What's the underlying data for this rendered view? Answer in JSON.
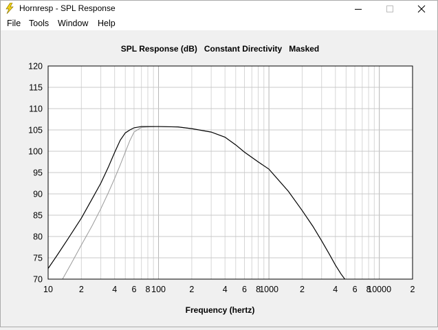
{
  "window": {
    "title": "Hornresp - SPL Response"
  },
  "menu": {
    "items": [
      "File",
      "Tools",
      "Window",
      "Help"
    ]
  },
  "chart_data": {
    "type": "line",
    "title": "SPL Response (dB)   Constant Directivity   Masked",
    "xlabel": "Frequency (hertz)",
    "ylabel": "",
    "xscale": "log",
    "xlim": [
      10,
      20000
    ],
    "ylim": [
      70,
      120
    ],
    "grid": true,
    "y_ticks": [
      70,
      75,
      80,
      85,
      90,
      95,
      100,
      105,
      110,
      115,
      120
    ],
    "x_tick_labels": [
      {
        "value": 10,
        "label": "10"
      },
      {
        "value": 20,
        "label": "2"
      },
      {
        "value": 40,
        "label": "4"
      },
      {
        "value": 60,
        "label": "6"
      },
      {
        "value": 80,
        "label": "8"
      },
      {
        "value": 100,
        "label": "100"
      },
      {
        "value": 200,
        "label": "2"
      },
      {
        "value": 400,
        "label": "4"
      },
      {
        "value": 600,
        "label": "6"
      },
      {
        "value": 800,
        "label": "8"
      },
      {
        "value": 1000,
        "label": "1000"
      },
      {
        "value": 2000,
        "label": "2"
      },
      {
        "value": 4000,
        "label": "4"
      },
      {
        "value": 6000,
        "label": "6"
      },
      {
        "value": 8000,
        "label": "8"
      },
      {
        "value": 10000,
        "label": "10000"
      },
      {
        "value": 20000,
        "label": "2"
      }
    ],
    "series": [
      {
        "color": "#000000",
        "x": [
          10,
          12,
          15,
          20,
          25,
          30,
          35,
          40,
          45,
          50,
          55,
          60,
          70,
          80,
          100,
          150,
          200,
          300,
          400,
          500,
          600,
          800,
          1000,
          1500,
          2000,
          2500,
          3000,
          3500,
          4000,
          4500,
          4900
        ],
        "y": [
          72.5,
          75.5,
          79.3,
          84.3,
          88.8,
          92.5,
          96.2,
          99.7,
          102.6,
          104.3,
          105.0,
          105.5,
          105.8,
          105.8,
          105.8,
          105.7,
          105.3,
          104.5,
          103.3,
          101.5,
          99.8,
          97.5,
          95.8,
          90.6,
          86.1,
          82.4,
          79.0,
          76.0,
          73.3,
          71.2,
          69.9
        ]
      },
      {
        "color": "#999999",
        "x": [
          13.5,
          16,
          20,
          25,
          30,
          35,
          40,
          45,
          50,
          55,
          60,
          70,
          80,
          100,
          150,
          200
        ],
        "y": [
          70.0,
          73.4,
          78.0,
          82.5,
          86.5,
          90.2,
          93.6,
          96.8,
          99.8,
          102.5,
          104.5,
          105.6,
          105.7,
          105.8,
          105.7,
          105.3
        ]
      }
    ]
  }
}
